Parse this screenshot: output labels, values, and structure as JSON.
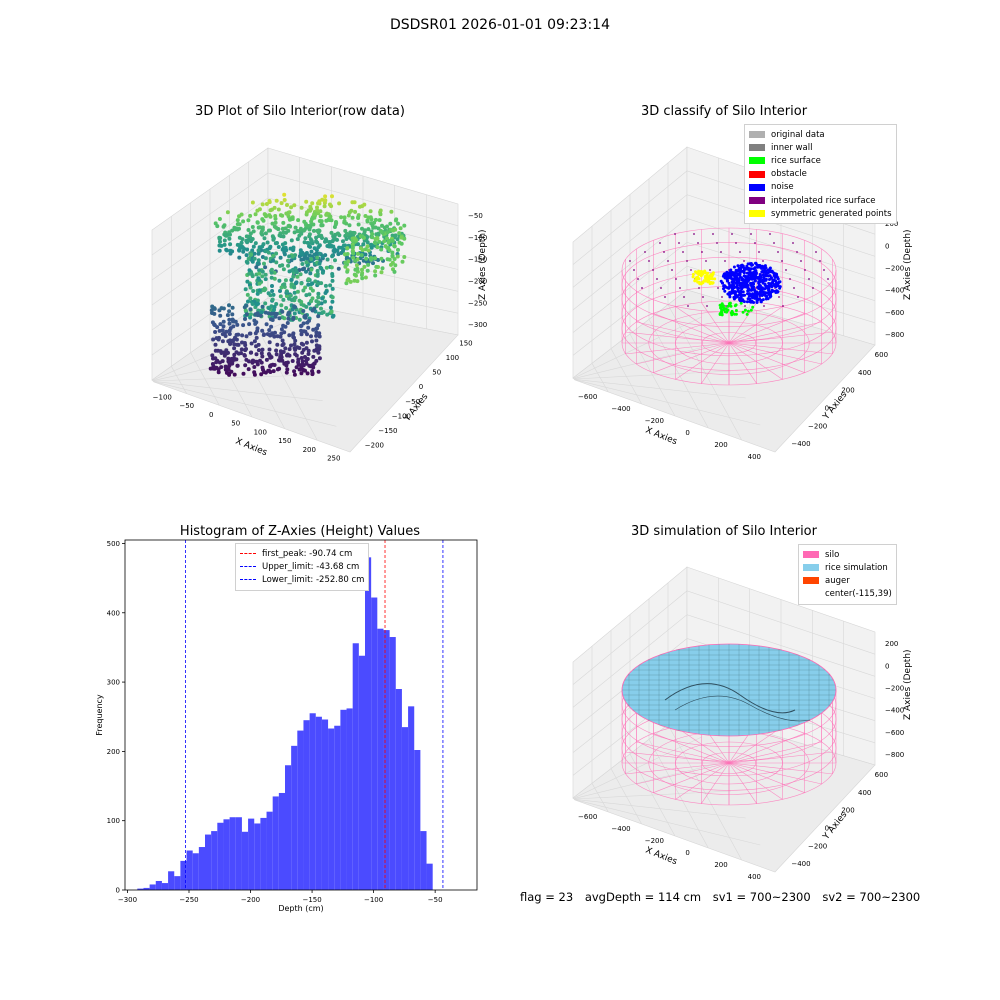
{
  "suptitle": "DSDSR01 2026-01-01 09:23:14",
  "colors": {
    "grey_original": "#b0b0b0",
    "grey_wall": "#808080",
    "rice_surface": "#00ff00",
    "obstacle": "#ff0000",
    "noise": "#0000ff",
    "interpolated": "#800080",
    "symmetric": "#ffff00",
    "silo": "#ff69b4",
    "rice_sim": "#87ceeb",
    "auger": "#ff4500",
    "hist": "#4b4bff"
  },
  "info": {
    "flag": "flag = 23",
    "avg_depth": "avgDepth = 114 cm",
    "sv1": "sv1 = 700~2300",
    "sv2": "sv2 = 700~2300"
  },
  "chart_data": [
    {
      "type": "scatter",
      "title": "3D Plot of Silo Interior(row data)",
      "xlabel": "X Axies",
      "ylabel": "Y Axies",
      "zlabel": "Z Axies (Depth)",
      "x_ticks": [
        "−100",
        "−50",
        "0",
        "50",
        "100",
        "150",
        "200",
        "250"
      ],
      "y_ticks": [
        "150",
        "100",
        "50",
        "0",
        "−50",
        "−100",
        "−150",
        "−200"
      ],
      "z_ticks": [
        "−50",
        "−100",
        "−150",
        "−200",
        "−250",
        "−300"
      ],
      "colormap": "viridis"
    },
    {
      "type": "scatter",
      "title": "3D classify of Silo Interior",
      "xlabel": "X Axies",
      "ylabel": "Y Axies",
      "zlabel": "Z Axies (Depth)",
      "x_ticks": [
        "−600",
        "−400",
        "−200",
        "0",
        "200",
        "400"
      ],
      "y_ticks": [
        "600",
        "400",
        "200",
        "0",
        "−200",
        "−400"
      ],
      "z_ticks": [
        "200",
        "0",
        "−200",
        "−400",
        "−600",
        "−800"
      ],
      "legend": [
        {
          "label": "original data",
          "color": "#b0b0b0"
        },
        {
          "label": "inner wall",
          "color": "#808080"
        },
        {
          "label": "rice surface",
          "color": "#00ff00"
        },
        {
          "label": "obstacle",
          "color": "#ff0000"
        },
        {
          "label": "noise",
          "color": "#0000ff"
        },
        {
          "label": "interpolated rice surface",
          "color": "#800080"
        },
        {
          "label": "symmetric generated points",
          "color": "#ffff00"
        }
      ]
    },
    {
      "type": "bar",
      "title": "Histogram of Z-Axies (Height) Values",
      "xlabel": "Depth (cm)",
      "ylabel": "Frequency",
      "xlim": [
        -302,
        -16
      ],
      "ylim": [
        0,
        505
      ],
      "x_ticks": [
        -300,
        -250,
        -200,
        -150,
        -100,
        -50
      ],
      "x_tick_labels": [
        "−300",
        "−250",
        "−200",
        "−150",
        "−100",
        "−50"
      ],
      "y_ticks": [
        0,
        100,
        200,
        300,
        400,
        500
      ],
      "bin_start": -292,
      "bin_width": 5,
      "values": [
        2,
        3,
        8,
        13,
        10,
        27,
        20,
        42,
        57,
        53,
        62,
        80,
        85,
        97,
        102,
        105,
        105,
        84,
        103,
        96,
        104,
        113,
        135,
        140,
        180,
        208,
        230,
        245,
        255,
        250,
        246,
        233,
        237,
        260,
        262,
        356,
        338,
        480,
        422,
        377,
        375,
        365,
        290,
        235,
        265,
        202,
        85,
        38
      ],
      "vlines": [
        {
          "x": -90.74,
          "label": "first_peak: -90.74 cm",
          "color": "#ff0000"
        },
        {
          "x": -43.68,
          "label": "Upper_limit: -43.68 cm",
          "color": "#0000ff"
        },
        {
          "x": -252.8,
          "label": "Lower_limit: -252.80 cm",
          "color": "#0000ff"
        }
      ]
    },
    {
      "type": "scatter",
      "title": "3D simulation of Silo Interior",
      "xlabel": "X Axies",
      "ylabel": "Y Axies",
      "zlabel": "Z Axies (Depth)",
      "x_ticks": [
        "−600",
        "−400",
        "−200",
        "0",
        "200",
        "400"
      ],
      "y_ticks": [
        "600",
        "400",
        "200",
        "0",
        "−200",
        "−400"
      ],
      "z_ticks": [
        "200",
        "0",
        "−200",
        "−400",
        "−600",
        "−800"
      ],
      "legend": [
        {
          "label": "silo",
          "color": "#ff69b4"
        },
        {
          "label": "rice simulation",
          "color": "#87ceeb"
        },
        {
          "label": "auger",
          "color": "#ff4500"
        },
        {
          "label": "center(-115,39)",
          "color": ""
        }
      ]
    }
  ]
}
